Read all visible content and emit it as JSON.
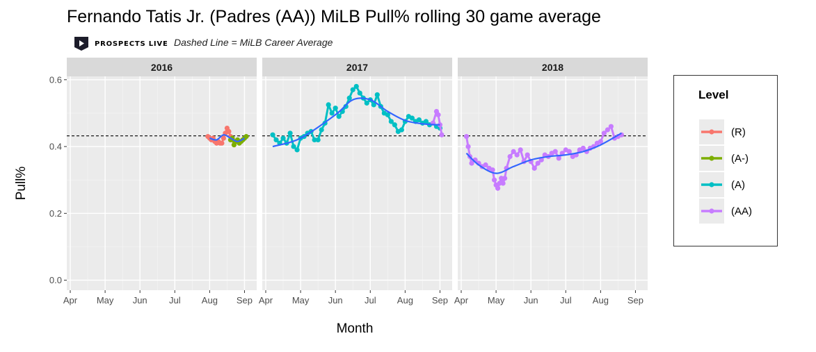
{
  "title": "Fernando Tatis Jr. (Padres (AA)) MiLB Pull% rolling 30 game average",
  "brand": {
    "name": "PROSPECTS LIVE"
  },
  "subtitle": "Dashed Line = MiLB Career Average",
  "chart_data": {
    "type": "line",
    "xlabel": "Month",
    "ylabel": "Pull%",
    "ylim": [
      -0.03,
      0.61
    ],
    "yticks": [
      0.0,
      0.2,
      0.4,
      0.6
    ],
    "ytick_labels": [
      "0.0",
      "0.2",
      "0.4",
      "0.6"
    ],
    "xticks": [
      "Apr",
      "May",
      "Jun",
      "Jul",
      "Aug",
      "Sep"
    ],
    "career_average": 0.432,
    "legend": {
      "title": "Level",
      "position": "right"
    },
    "levels": [
      {
        "name": "(R)",
        "color": "#F8766D"
      },
      {
        "name": "(A-)",
        "color": "#7CAE00"
      },
      {
        "name": "(A)",
        "color": "#00BFC4"
      },
      {
        "name": "(AA)",
        "color": "#C77CFF"
      }
    ],
    "panels": [
      {
        "year": "2016",
        "series": [
          {
            "level": "(R)",
            "month": [
              3.95,
              4.0,
              4.05,
              4.1,
              4.15,
              4.2,
              4.25,
              4.3,
              4.35,
              4.4,
              4.45,
              4.5,
              4.55,
              4.6,
              4.65
            ],
            "y": [
              0.43,
              0.425,
              0.42,
              0.425,
              0.415,
              0.41,
              0.415,
              0.41,
              0.41,
              0.425,
              0.44,
              0.455,
              0.445,
              0.43,
              0.42
            ]
          },
          {
            "level": "(A-)",
            "month": [
              4.6,
              4.65,
              4.7,
              4.75,
              4.8,
              4.85,
              4.9,
              4.95,
              5.0,
              5.05
            ],
            "y": [
              0.42,
              0.425,
              0.405,
              0.415,
              0.42,
              0.41,
              0.415,
              0.42,
              0.425,
              0.43
            ]
          }
        ],
        "smooth": {
          "month": [
            4.0,
            4.2,
            4.4,
            4.6,
            4.8,
            5.0
          ],
          "y": [
            0.425,
            0.42,
            0.435,
            0.425,
            0.415,
            0.425
          ]
        }
      },
      {
        "year": "2017",
        "series": [
          {
            "level": "(A)",
            "month": [
              0.2,
              0.3,
              0.4,
              0.5,
              0.6,
              0.7,
              0.8,
              0.9,
              1.0,
              1.1,
              1.2,
              1.3,
              1.4,
              1.5,
              1.6,
              1.7,
              1.8,
              1.9,
              2.0,
              2.1,
              2.2,
              2.3,
              2.4,
              2.5,
              2.6,
              2.7,
              2.8,
              2.9,
              3.0,
              3.1,
              3.2,
              3.3,
              3.4,
              3.5,
              3.6,
              3.7,
              3.8,
              3.9,
              4.0,
              4.1,
              4.2,
              4.3,
              4.4,
              4.5,
              4.6,
              4.7,
              4.8,
              4.9,
              5.0
            ],
            "y": [
              0.435,
              0.42,
              0.41,
              0.425,
              0.41,
              0.44,
              0.4,
              0.39,
              0.425,
              0.43,
              0.44,
              0.445,
              0.42,
              0.42,
              0.45,
              0.47,
              0.525,
              0.5,
              0.515,
              0.49,
              0.505,
              0.52,
              0.545,
              0.57,
              0.58,
              0.56,
              0.545,
              0.53,
              0.54,
              0.525,
              0.555,
              0.52,
              0.5,
              0.495,
              0.475,
              0.465,
              0.445,
              0.45,
              0.475,
              0.49,
              0.485,
              0.475,
              0.48,
              0.47,
              0.475,
              0.465,
              0.47,
              0.46,
              0.455
            ]
          },
          {
            "level": "(AA)",
            "month": [
              4.8,
              4.9,
              4.95,
              5.0,
              5.05
            ],
            "y": [
              0.47,
              0.505,
              0.495,
              0.465,
              0.435
            ]
          }
        ],
        "smooth": {
          "month": [
            0.2,
            1.0,
            2.0,
            2.5,
            3.0,
            3.5,
            4.0,
            4.5,
            5.0
          ],
          "y": [
            0.4,
            0.425,
            0.495,
            0.54,
            0.54,
            0.505,
            0.478,
            0.468,
            0.465
          ]
        }
      },
      {
        "year": "2018",
        "series": [
          {
            "level": "(AA)",
            "month": [
              0.15,
              0.2,
              0.25,
              0.3,
              0.4,
              0.5,
              0.6,
              0.7,
              0.8,
              0.9,
              0.95,
              1.0,
              1.05,
              1.1,
              1.15,
              1.2,
              1.25,
              1.3,
              1.4,
              1.5,
              1.6,
              1.7,
              1.8,
              1.9,
              2.0,
              2.1,
              2.2,
              2.3,
              2.4,
              2.5,
              2.6,
              2.7,
              2.8,
              2.9,
              3.0,
              3.1,
              3.2,
              3.3,
              3.4,
              3.5,
              3.6,
              3.7,
              3.8,
              3.9,
              4.0,
              4.1,
              4.2,
              4.3,
              4.4,
              4.5,
              4.6
            ],
            "y": [
              0.43,
              0.4,
              0.37,
              0.35,
              0.36,
              0.35,
              0.34,
              0.345,
              0.335,
              0.33,
              0.3,
              0.285,
              0.275,
              0.29,
              0.305,
              0.29,
              0.305,
              0.335,
              0.37,
              0.385,
              0.375,
              0.39,
              0.355,
              0.375,
              0.355,
              0.335,
              0.35,
              0.36,
              0.375,
              0.37,
              0.38,
              0.385,
              0.365,
              0.38,
              0.39,
              0.385,
              0.37,
              0.375,
              0.39,
              0.395,
              0.385,
              0.395,
              0.4,
              0.41,
              0.415,
              0.44,
              0.45,
              0.46,
              0.425,
              0.43,
              0.435
            ]
          }
        ],
        "smooth": {
          "month": [
            0.15,
            0.5,
            1.0,
            1.5,
            2.0,
            2.5,
            3.0,
            3.5,
            4.0,
            4.6
          ],
          "y": [
            0.38,
            0.345,
            0.32,
            0.34,
            0.36,
            0.37,
            0.375,
            0.385,
            0.405,
            0.44
          ]
        }
      }
    ]
  }
}
